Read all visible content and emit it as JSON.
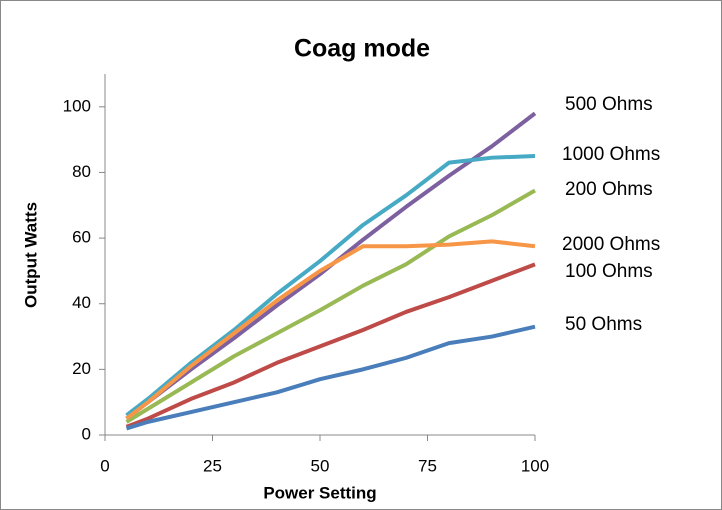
{
  "chart_data": {
    "type": "line",
    "title": "Coag mode",
    "x_label": "Power Setting",
    "y_label": "Output Watts",
    "x": [
      5,
      10,
      20,
      30,
      40,
      50,
      60,
      70,
      80,
      90,
      100
    ],
    "xlim": [
      0,
      100
    ],
    "xticks": [
      0,
      25,
      50,
      75,
      100
    ],
    "ylim": [
      0,
      110
    ],
    "yticks": [
      0,
      20,
      40,
      60,
      80,
      100
    ],
    "series": [
      {
        "name": "500 Ohms",
        "color": "#7d60a0",
        "values": [
          5,
          10,
          20,
          29.5,
          39.5,
          49,
          59.5,
          69.5,
          79,
          88,
          98
        ]
      },
      {
        "name": "1000 Ohms",
        "color": "#46aac5",
        "values": [
          6,
          11,
          22,
          32,
          43,
          53,
          64,
          73,
          83,
          84.5,
          85
        ]
      },
      {
        "name": "200 Ohms",
        "color": "#98b954",
        "values": [
          4,
          8,
          16,
          24,
          31,
          38,
          45.5,
          52,
          60.5,
          67,
          74.5
        ]
      },
      {
        "name": "2000 Ohms",
        "color": "#f79646",
        "values": [
          5,
          10,
          21,
          31,
          41,
          50,
          57.5,
          57.5,
          58,
          59,
          57.5
        ]
      },
      {
        "name": "100 Ohms",
        "color": "#be4b48",
        "values": [
          2.5,
          5,
          11,
          16,
          22,
          27,
          32,
          37.5,
          42,
          47,
          52
        ]
      },
      {
        "name": "50 Ohms",
        "color": "#4a7ebb",
        "values": [
          2,
          4,
          7,
          10,
          13,
          17,
          20,
          23.5,
          28,
          30,
          33
        ]
      }
    ]
  }
}
